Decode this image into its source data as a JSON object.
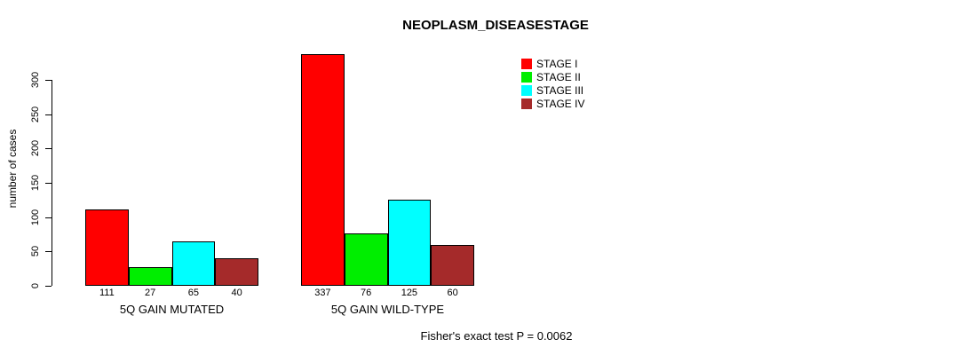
{
  "chart_data": {
    "type": "bar",
    "title": "NEOPLASM_DISEASESTAGE",
    "ylabel": "number of cases",
    "xlabel": "",
    "ylim": [
      0,
      340
    ],
    "yticks": [
      0,
      50,
      100,
      150,
      200,
      250,
      300
    ],
    "categories": [
      "5Q GAIN MUTATED",
      "5Q GAIN WILD-TYPE"
    ],
    "series": [
      {
        "name": "STAGE I",
        "color": "#FF0000",
        "values": [
          111,
          337
        ]
      },
      {
        "name": "STAGE II",
        "color": "#00EE00",
        "values": [
          27,
          76
        ]
      },
      {
        "name": "STAGE III",
        "color": "#00FFFF",
        "values": [
          65,
          125
        ]
      },
      {
        "name": "STAGE IV",
        "color": "#A52A2A",
        "values": [
          40,
          60
        ]
      }
    ],
    "bar_value_labels": [
      [
        111,
        27,
        65,
        40
      ],
      [
        337,
        76,
        125,
        60
      ]
    ],
    "legend_position": "top-right",
    "legend_border": "none",
    "grid": false,
    "bar_border_color": "#000000",
    "annotation": "Fisher's exact test P = 0.0062"
  }
}
